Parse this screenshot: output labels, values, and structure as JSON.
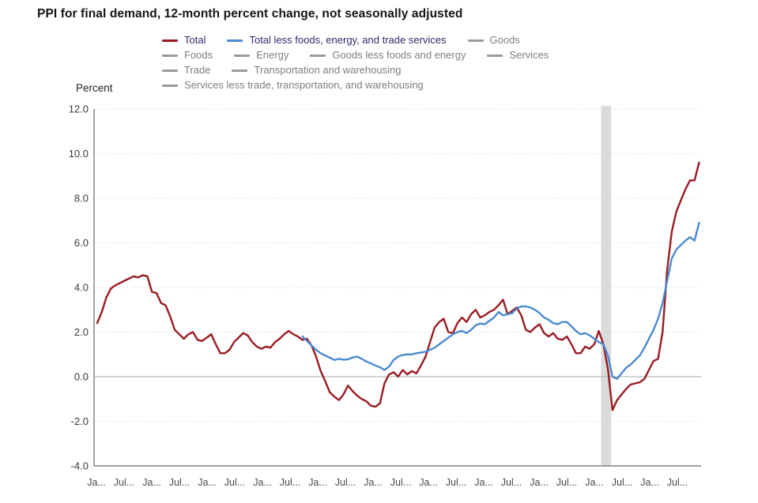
{
  "page_title": "PPI for final demand, 12-month percent change, not seasonally adjusted",
  "colors": {
    "total_line": "#9A1B23",
    "core_line": "#4A8BD0",
    "legend_active_text": "#2A2E69",
    "legend_inactive_text": "#7F7F7F",
    "legend_inactive_swatch": "#9A9A9A",
    "gridline_dotted": "#CDCDCD",
    "zero_line": "#A8A8A8",
    "axis_line": "#7F7F7F",
    "recession_band": "#DBDBDB",
    "tick_text": "#3A3A3A"
  },
  "legend": {
    "rows": [
      [
        {
          "label": "Total",
          "active": true,
          "color": "#9A1B23"
        },
        {
          "label": "Total less foods, energy, and trade services",
          "active": true,
          "color": "#4A8BD0"
        },
        {
          "label": "Goods",
          "active": false
        }
      ],
      [
        {
          "label": "Foods",
          "active": false
        },
        {
          "label": "Energy",
          "active": false
        },
        {
          "label": "Goods less foods and energy",
          "active": false
        },
        {
          "label": "Services",
          "active": false
        }
      ],
      [
        {
          "label": "Trade",
          "active": false
        },
        {
          "label": "Transportation and warehousing",
          "active": false
        }
      ],
      [
        {
          "label": "Services less trade, transportation, and warehousing",
          "active": false
        }
      ]
    ]
  },
  "chart_data": {
    "type": "line",
    "title": "PPI for final demand, 12-month percent change, not seasonally adjusted",
    "ylabel": "Percent",
    "xlabel": "",
    "ylim": [
      -4.0,
      12.0
    ],
    "ytick_step": 2.0,
    "grid": "dotted horizontal, solid zero line",
    "legend_position": "top",
    "y_tick_labels": [
      "12.0",
      "10.0",
      "8.0",
      "6.0",
      "4.0",
      "2.0",
      "0.0",
      "-2.0",
      "-4.0"
    ],
    "x_tick_labels": [
      "Ja...",
      "Jul...",
      "Ja...",
      "Jul...",
      "Ja...",
      "Jul...",
      "Ja...",
      "Jul...",
      "Ja...",
      "Jul...",
      "Ja...",
      "Jul...",
      "Ja...",
      "Jul...",
      "Ja...",
      "Jul...",
      "Ja...",
      "Jul...",
      "Ja...",
      "Jul...",
      "Ja...",
      "Jul..."
    ],
    "x_range": {
      "start": "Nov 2010",
      "end": "Nov 2021",
      "frequency": "monthly",
      "n_months": 133
    },
    "recession_band": {
      "name": "recession-shading",
      "start_month_index": 110.5,
      "end_month_index": 112.7
    },
    "series": [
      {
        "name": "Total",
        "color": "#9A1B23",
        "start_month_index": 0,
        "values": [
          2.4,
          2.9,
          3.55,
          3.95,
          4.1,
          4.2,
          4.3,
          4.4,
          4.5,
          4.45,
          4.55,
          4.5,
          3.8,
          3.75,
          3.3,
          3.2,
          2.7,
          2.1,
          1.9,
          1.7,
          1.9,
          2.0,
          1.65,
          1.6,
          1.75,
          1.9,
          1.45,
          1.05,
          1.05,
          1.2,
          1.55,
          1.75,
          1.95,
          1.85,
          1.55,
          1.35,
          1.25,
          1.35,
          1.3,
          1.55,
          1.7,
          1.9,
          2.05,
          1.9,
          1.8,
          1.65,
          1.7,
          1.4,
          0.9,
          0.25,
          -0.2,
          -0.7,
          -0.9,
          -1.05,
          -0.8,
          -0.4,
          -0.65,
          -0.85,
          -1.0,
          -1.1,
          -1.3,
          -1.35,
          -1.2,
          -0.3,
          0.1,
          0.2,
          0.0,
          0.3,
          0.1,
          0.25,
          0.15,
          0.5,
          0.9,
          1.55,
          2.2,
          2.45,
          2.6,
          2.0,
          1.95,
          2.4,
          2.65,
          2.45,
          2.8,
          3.0,
          2.65,
          2.75,
          2.9,
          3.0,
          3.2,
          3.45,
          2.8,
          2.95,
          3.1,
          2.75,
          2.1,
          2.0,
          2.2,
          2.35,
          1.95,
          1.8,
          1.95,
          1.7,
          1.65,
          1.8,
          1.45,
          1.05,
          1.05,
          1.35,
          1.25,
          1.45,
          2.05,
          1.45,
          0.35,
          -1.5,
          -1.05,
          -0.8,
          -0.55,
          -0.35,
          -0.3,
          -0.25,
          -0.1,
          0.3,
          0.7,
          0.8,
          2.0,
          4.8,
          6.5,
          7.4,
          7.9,
          8.4,
          8.8,
          8.8,
          9.6
        ]
      },
      {
        "name": "Total less foods, energy, and trade services",
        "color": "#4A8BD0",
        "start_month_index": 45,
        "values": [
          1.8,
          1.6,
          1.4,
          1.2,
          1.05,
          0.95,
          0.85,
          0.75,
          0.8,
          0.76,
          0.78,
          0.86,
          0.9,
          0.8,
          0.68,
          0.6,
          0.5,
          0.42,
          0.3,
          0.45,
          0.75,
          0.9,
          0.97,
          1.0,
          1.0,
          1.05,
          1.08,
          1.12,
          1.2,
          1.3,
          1.45,
          1.6,
          1.75,
          1.9,
          2.0,
          2.05,
          1.95,
          2.1,
          2.3,
          2.38,
          2.35,
          2.5,
          2.65,
          2.9,
          2.75,
          2.8,
          2.85,
          3.05,
          3.15,
          3.15,
          3.1,
          3.0,
          2.85,
          2.65,
          2.55,
          2.4,
          2.35,
          2.45,
          2.45,
          2.25,
          2.05,
          1.9,
          1.95,
          1.85,
          1.7,
          1.55,
          1.45,
          0.95,
          0.0,
          -0.1,
          0.15,
          0.4,
          0.55,
          0.75,
          0.95,
          1.3,
          1.7,
          2.1,
          2.6,
          3.3,
          4.3,
          5.3,
          5.7,
          5.9,
          6.1,
          6.25,
          6.1,
          6.9
        ]
      }
    ],
    "inactive_legend_series": [
      "Goods",
      "Foods",
      "Energy",
      "Goods less foods and energy",
      "Services",
      "Trade",
      "Transportation and warehousing",
      "Services less trade, transportation, and warehousing"
    ]
  }
}
